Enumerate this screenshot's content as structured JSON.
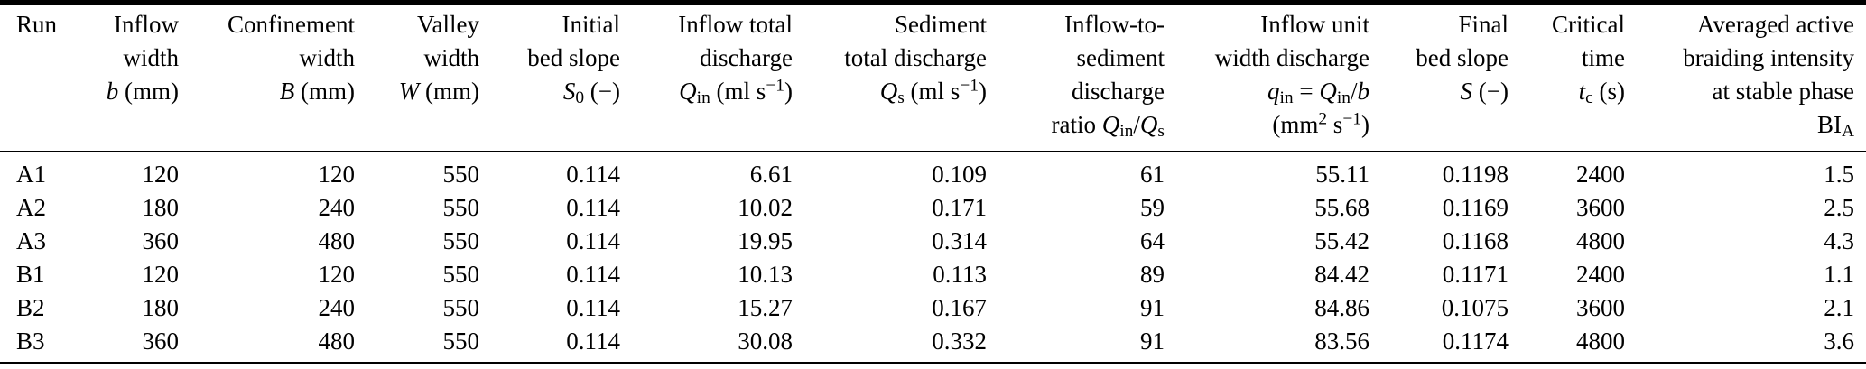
{
  "colors": {
    "text": "#000000",
    "background": "#ffffff",
    "rule": "#000000"
  },
  "table": {
    "columns": [
      {
        "id": "run",
        "header_lines": [
          "Run"
        ]
      },
      {
        "id": "inflow-width",
        "header_lines": [
          "Inflow",
          "width",
          "<i>b</i> (mm)"
        ]
      },
      {
        "id": "confinement-width",
        "header_lines": [
          "Confinement",
          "width",
          "<i>B</i> (mm)"
        ]
      },
      {
        "id": "valley-width",
        "header_lines": [
          "Valley",
          "width",
          "<i>W</i> (mm)"
        ]
      },
      {
        "id": "initial-bed-slope",
        "header_lines": [
          "Initial",
          "bed slope",
          "<i>S</i><sub>0</sub> (−)"
        ]
      },
      {
        "id": "inflow-total-discharge",
        "header_lines": [
          "Inflow total",
          "discharge",
          "<i>Q</i><sub>in</sub> (ml s<sup>−1</sup>)"
        ]
      },
      {
        "id": "sediment-total-discharge",
        "header_lines": [
          "Sediment",
          "total discharge",
          "<i>Q</i><sub>s</sub> (ml s<sup>−1</sup>)"
        ]
      },
      {
        "id": "inflow-to-sediment-ratio",
        "header_lines": [
          "Inflow-to-",
          "sediment",
          "discharge",
          "ratio <i>Q</i><sub>in</sub>/<i>Q</i><sub>s</sub>"
        ]
      },
      {
        "id": "inflow-unit-width-discharge",
        "header_lines": [
          "Inflow unit",
          "width discharge",
          "<i>q</i><sub>in</sub> = <i>Q</i><sub>in</sub>/<i>b</i>",
          "(mm<sup>2</sup> s<sup>−1</sup>)"
        ]
      },
      {
        "id": "final-bed-slope",
        "header_lines": [
          "Final",
          "bed slope",
          "<i>S</i> (−)"
        ]
      },
      {
        "id": "critical-time",
        "header_lines": [
          "Critical",
          "time",
          "<i>t</i><sub>c</sub> (s)"
        ]
      },
      {
        "id": "braiding-intensity",
        "header_lines": [
          "Averaged active",
          "braiding intensity",
          "at stable phase",
          "BI<sub>A</sub>"
        ]
      }
    ],
    "rows": [
      [
        "A1",
        "120",
        "120",
        "550",
        "0.114",
        "6.61",
        "0.109",
        "61",
        "55.11",
        "0.1198",
        "2400",
        "1.5"
      ],
      [
        "A2",
        "180",
        "240",
        "550",
        "0.114",
        "10.02",
        "0.171",
        "59",
        "55.68",
        "0.1169",
        "3600",
        "2.5"
      ],
      [
        "A3",
        "360",
        "480",
        "550",
        "0.114",
        "19.95",
        "0.314",
        "64",
        "55.42",
        "0.1168",
        "4800",
        "4.3"
      ],
      [
        "B1",
        "120",
        "120",
        "550",
        "0.114",
        "10.13",
        "0.113",
        "89",
        "84.42",
        "0.1171",
        "2400",
        "1.1"
      ],
      [
        "B2",
        "180",
        "240",
        "550",
        "0.114",
        "15.27",
        "0.167",
        "91",
        "84.86",
        "0.1075",
        "3600",
        "2.1"
      ],
      [
        "B3",
        "360",
        "480",
        "550",
        "0.114",
        "30.08",
        "0.332",
        "91",
        "83.56",
        "0.1174",
        "4800",
        "3.6"
      ]
    ]
  }
}
